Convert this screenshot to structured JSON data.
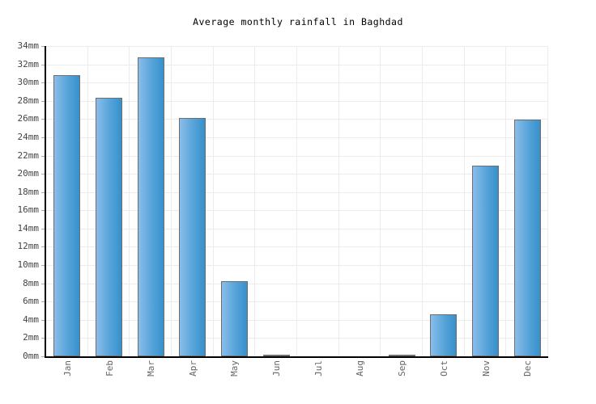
{
  "title": "Average monthly rainfall in Baghdad",
  "chart_data": {
    "type": "bar",
    "title": "Average monthly rainfall in Baghdad",
    "categories": [
      "Jan",
      "Feb",
      "Mar",
      "Apr",
      "May",
      "Jun",
      "Jul",
      "Aug",
      "Sep",
      "Oct",
      "Nov",
      "Dec"
    ],
    "values": [
      30.8,
      28.3,
      32.8,
      26.1,
      8.2,
      0.1,
      0,
      0,
      0.1,
      4.6,
      20.9,
      25.9
    ],
    "unit": "mm",
    "xlabel": "",
    "ylabel": "",
    "ylim": [
      0,
      34
    ],
    "ytick_step": 2,
    "ytick_labels": [
      "0mm",
      "2mm",
      "4mm",
      "6mm",
      "8mm",
      "10mm",
      "12mm",
      "14mm",
      "16mm",
      "18mm",
      "20mm",
      "22mm",
      "24mm",
      "26mm",
      "28mm",
      "30mm",
      "32mm",
      "34mm"
    ],
    "grid": true,
    "legend": "none",
    "colors": {
      "bar_gradient_left": "#8abde9",
      "bar_gradient_right": "#3890cb",
      "bar_border": "#6e6e6e",
      "gridline": "#ececec",
      "axis": "#000000",
      "y_label_text": "#444444",
      "x_label_text": "#666666",
      "title_text": "#000000",
      "background": "#ffffff"
    }
  }
}
